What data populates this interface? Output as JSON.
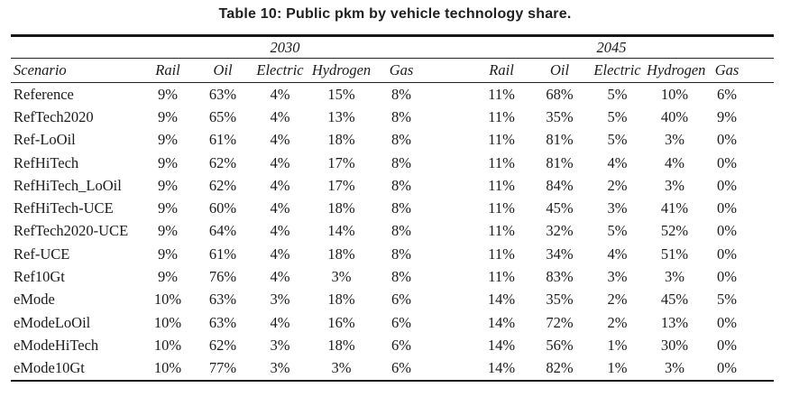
{
  "page": {
    "title": "Table 10: Public pkm by vehicle technology share."
  },
  "table": {
    "scenario_header": "Scenario",
    "year_groups": [
      "2030",
      "2045"
    ],
    "columns": [
      "Rail",
      "Oil",
      "Electric",
      "Hydrogen",
      "Gas"
    ],
    "rows": [
      {
        "scenario": "Reference",
        "y2030": [
          "9%",
          "63%",
          "4%",
          "15%",
          "8%"
        ],
        "y2045": [
          "11%",
          "68%",
          "5%",
          "10%",
          "6%"
        ]
      },
      {
        "scenario": "RefTech2020",
        "y2030": [
          "9%",
          "65%",
          "4%",
          "13%",
          "8%"
        ],
        "y2045": [
          "11%",
          "35%",
          "5%",
          "40%",
          "9%"
        ]
      },
      {
        "scenario": "Ref-LoOil",
        "y2030": [
          "9%",
          "61%",
          "4%",
          "18%",
          "8%"
        ],
        "y2045": [
          "11%",
          "81%",
          "5%",
          "3%",
          "0%"
        ]
      },
      {
        "scenario": "RefHiTech",
        "y2030": [
          "9%",
          "62%",
          "4%",
          "17%",
          "8%"
        ],
        "y2045": [
          "11%",
          "81%",
          "4%",
          "4%",
          "0%"
        ]
      },
      {
        "scenario": "RefHiTech_LoOil",
        "y2030": [
          "9%",
          "62%",
          "4%",
          "17%",
          "8%"
        ],
        "y2045": [
          "11%",
          "84%",
          "2%",
          "3%",
          "0%"
        ]
      },
      {
        "scenario": "RefHiTech-UCE",
        "y2030": [
          "9%",
          "60%",
          "4%",
          "18%",
          "8%"
        ],
        "y2045": [
          "11%",
          "45%",
          "3%",
          "41%",
          "0%"
        ]
      },
      {
        "scenario": "RefTech2020-UCE",
        "y2030": [
          "9%",
          "64%",
          "4%",
          "14%",
          "8%"
        ],
        "y2045": [
          "11%",
          "32%",
          "5%",
          "52%",
          "0%"
        ]
      },
      {
        "scenario": "Ref-UCE",
        "y2030": [
          "9%",
          "61%",
          "4%",
          "18%",
          "8%"
        ],
        "y2045": [
          "11%",
          "34%",
          "4%",
          "51%",
          "0%"
        ]
      },
      {
        "scenario": "Ref10Gt",
        "y2030": [
          "9%",
          "76%",
          "4%",
          "3%",
          "8%"
        ],
        "y2045": [
          "11%",
          "83%",
          "3%",
          "3%",
          "0%"
        ]
      },
      {
        "scenario": "eMode",
        "y2030": [
          "10%",
          "63%",
          "3%",
          "18%",
          "6%"
        ],
        "y2045": [
          "14%",
          "35%",
          "2%",
          "45%",
          "5%"
        ]
      },
      {
        "scenario": "eModeLoOil",
        "y2030": [
          "10%",
          "63%",
          "4%",
          "16%",
          "6%"
        ],
        "y2045": [
          "14%",
          "72%",
          "2%",
          "13%",
          "0%"
        ]
      },
      {
        "scenario": "eModeHiTech",
        "y2030": [
          "10%",
          "62%",
          "3%",
          "18%",
          "6%"
        ],
        "y2045": [
          "14%",
          "56%",
          "1%",
          "30%",
          "0%"
        ]
      },
      {
        "scenario": "eMode10Gt",
        "y2030": [
          "10%",
          "77%",
          "3%",
          "3%",
          "6%"
        ],
        "y2045": [
          "14%",
          "82%",
          "1%",
          "3%",
          "0%"
        ]
      }
    ]
  },
  "colors": {
    "text": "#1b1b1b",
    "rule": "#161616",
    "background": "#ffffff"
  }
}
